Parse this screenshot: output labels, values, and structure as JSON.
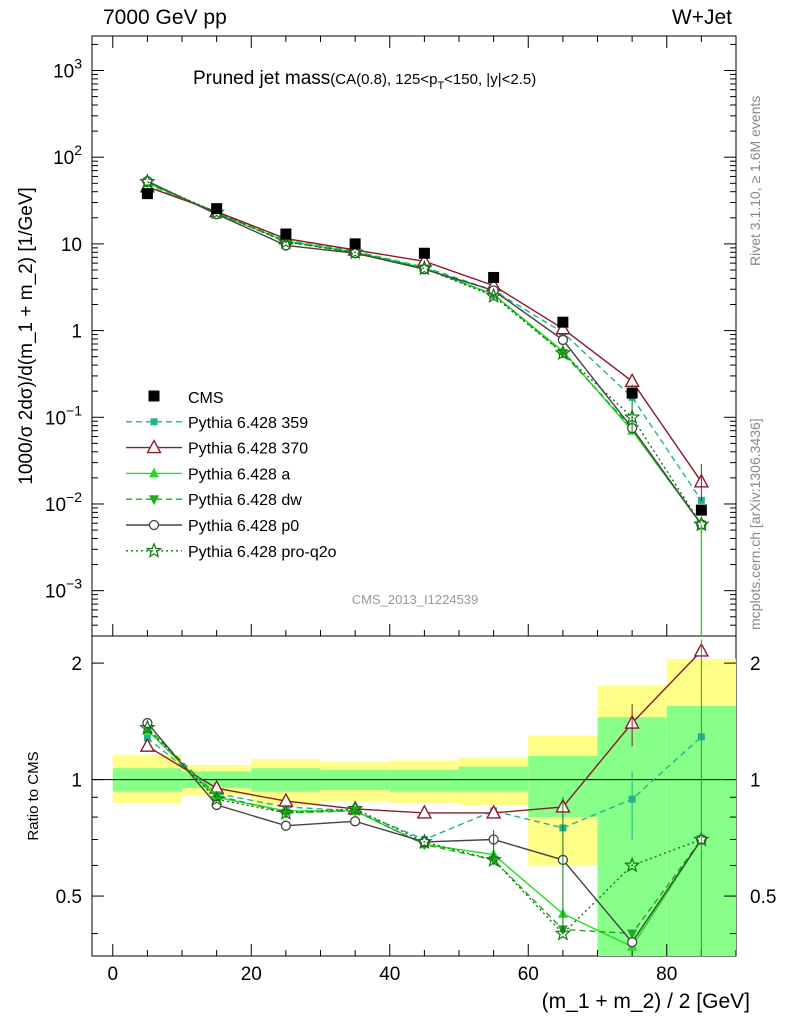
{
  "header": {
    "energy_label": "7000 GeV pp",
    "process_label": "W+Jet"
  },
  "side": {
    "rivet_label": "Rivet 3.1.10, ≥ 1.6M events",
    "mcplots_label": "mcplots.cern.ch [arXiv:1306.3436]"
  },
  "chart_data": [
    {
      "type": "scatter",
      "panel": "main",
      "title_main": "Pruned jet mass",
      "title_cuts_a": "(CA(0.8), 125<p",
      "title_cuts_sub": "T",
      "title_cuts_b": "<150, |y|<2.5)",
      "analysis_id": "CMS_2013_I1224539",
      "ylabel": "1000/σ 2dσ)/d(m_1 + m_2) [1/GeV]",
      "yscale": "log",
      "ylim": [
        0.0003,
        2500
      ],
      "xlim": [
        -3,
        90
      ],
      "yticks": [
        {
          "base": "10",
          "exp": "3"
        },
        {
          "base": "10",
          "exp": "2"
        },
        {
          "text": "10"
        },
        {
          "text": "1"
        },
        {
          "base": "10",
          "exp": "−1"
        },
        {
          "base": "10",
          "exp": "−2"
        },
        {
          "base": "10",
          "exp": "−3"
        }
      ],
      "ytick_values": [
        1000,
        100,
        10,
        1,
        0.1,
        0.01,
        0.001
      ],
      "legend_position": "lower-left",
      "x": [
        5,
        15,
        25,
        35,
        45,
        55,
        65,
        75,
        85
      ],
      "data": {
        "name": "CMS",
        "values": [
          38,
          25.5,
          13,
          10,
          7.8,
          4.1,
          1.25,
          0.19,
          0.0085
        ]
      },
      "series": [
        {
          "name": "Pythia 6.428 359",
          "color": "#1fb38f",
          "dash": "6,4",
          "marker": "square-small",
          "values": [
            48.5,
            23.2,
            11.0,
            8.2,
            5.4,
            2.9,
            0.95,
            0.17,
            0.011
          ]
        },
        {
          "name": "Pythia 6.428 370",
          "color": "#8b1a2b",
          "dash": "",
          "marker": "triangle-open",
          "values": [
            45.5,
            23.5,
            11.5,
            8.5,
            6.3,
            3.3,
            1.05,
            0.26,
            0.018
          ]
        },
        {
          "name": "Pythia 6.428 a",
          "color": "#22dd22",
          "dash": "",
          "marker": "triangle-filled",
          "values": [
            50.5,
            22.5,
            10.8,
            8.0,
            5.3,
            2.6,
            0.58,
            0.07,
            0.0058
          ]
        },
        {
          "name": "Pythia 6.428 dw",
          "color": "#1faa1f",
          "dash": "6,4",
          "marker": "triangle-down",
          "values": [
            51.0,
            22.8,
            10.6,
            7.9,
            5.2,
            2.6,
            0.55,
            0.075,
            0.0058
          ]
        },
        {
          "name": "Pythia 6.428 p0",
          "color": "#444444",
          "dash": "",
          "marker": "circle-open",
          "values": [
            53.0,
            22.0,
            9.6,
            7.8,
            5.1,
            2.9,
            0.78,
            0.075,
            0.0058
          ]
        },
        {
          "name": "Pythia 6.428 pro-q2o",
          "color": "#117711",
          "dash": "2,3",
          "marker": "star-open",
          "values": [
            52.0,
            23.0,
            10.5,
            8.0,
            5.2,
            2.5,
            0.55,
            0.1,
            0.0058
          ]
        }
      ]
    },
    {
      "type": "line",
      "panel": "ratio",
      "ylabel": "Ratio to CMS",
      "xlabel": "(m_1 + m_2) / 2 [GeV]",
      "ylim": [
        0.35,
        2.35
      ],
      "xlim": [
        -3,
        90
      ],
      "xticks": [
        "0",
        "20",
        "40",
        "60",
        "80"
      ],
      "xtick_values": [
        0,
        20,
        40,
        60,
        80
      ],
      "yticks": [
        "0.5",
        "1",
        "2"
      ],
      "ytick_values": [
        0.5,
        1,
        2
      ],
      "x": [
        5,
        15,
        25,
        35,
        45,
        55,
        65,
        75,
        85
      ],
      "bins": [
        [
          0,
          10
        ],
        [
          10,
          20
        ],
        [
          20,
          30
        ],
        [
          30,
          40
        ],
        [
          40,
          50
        ],
        [
          50,
          60
        ],
        [
          60,
          70
        ],
        [
          70,
          80
        ],
        [
          80,
          90
        ]
      ],
      "band_outer": [
        [
          0.87,
          1.16
        ],
        [
          0.91,
          1.09
        ],
        [
          0.86,
          1.13
        ],
        [
          0.88,
          1.11
        ],
        [
          0.87,
          1.12
        ],
        [
          0.86,
          1.14
        ],
        [
          0.6,
          1.3
        ],
        [
          0.5,
          1.75
        ],
        [
          0.3,
          2.05
        ]
      ],
      "band_inner": [
        [
          0.93,
          1.07
        ],
        [
          0.95,
          1.05
        ],
        [
          0.93,
          1.07
        ],
        [
          0.94,
          1.06
        ],
        [
          0.93,
          1.06
        ],
        [
          0.93,
          1.08
        ],
        [
          0.8,
          1.15
        ],
        [
          0.3,
          1.45
        ],
        [
          0.3,
          1.55
        ]
      ],
      "band_colors": {
        "outer": "#ffff88",
        "inner": "#88ff88"
      },
      "series": [
        {
          "name": "Pythia 6.428 359",
          "color": "#1fb38f",
          "dash": "6,4",
          "marker": "square-small",
          "values": [
            1.28,
            0.92,
            0.85,
            0.83,
            0.7,
            0.83,
            0.75,
            0.89,
            1.29
          ]
        },
        {
          "name": "Pythia 6.428 370",
          "color": "#8b1a2b",
          "dash": "",
          "marker": "triangle-open",
          "values": [
            1.22,
            0.95,
            0.88,
            0.84,
            0.82,
            0.82,
            0.85,
            1.4,
            2.15
          ]
        },
        {
          "name": "Pythia 6.428 a",
          "color": "#22dd22",
          "dash": "",
          "marker": "triangle-filled",
          "values": [
            1.34,
            0.9,
            0.83,
            0.83,
            0.68,
            0.64,
            0.45,
            0.37,
            0.7
          ]
        },
        {
          "name": "Pythia 6.428 dw",
          "color": "#1faa1f",
          "dash": "6,4",
          "marker": "triangle-down",
          "values": [
            1.36,
            0.91,
            0.82,
            0.83,
            0.68,
            0.62,
            0.41,
            0.4,
            0.7
          ]
        },
        {
          "name": "Pythia 6.428 p0",
          "color": "#444444",
          "dash": "",
          "marker": "circle-open",
          "values": [
            1.4,
            0.86,
            0.76,
            0.78,
            0.69,
            0.7,
            0.62,
            0.38,
            0.7
          ]
        },
        {
          "name": "Pythia 6.428 pro-q2o",
          "color": "#117711",
          "dash": "2,3",
          "marker": "star-open",
          "values": [
            1.36,
            0.89,
            0.82,
            0.84,
            0.69,
            0.62,
            0.4,
            0.6,
            0.7
          ]
        }
      ]
    }
  ]
}
